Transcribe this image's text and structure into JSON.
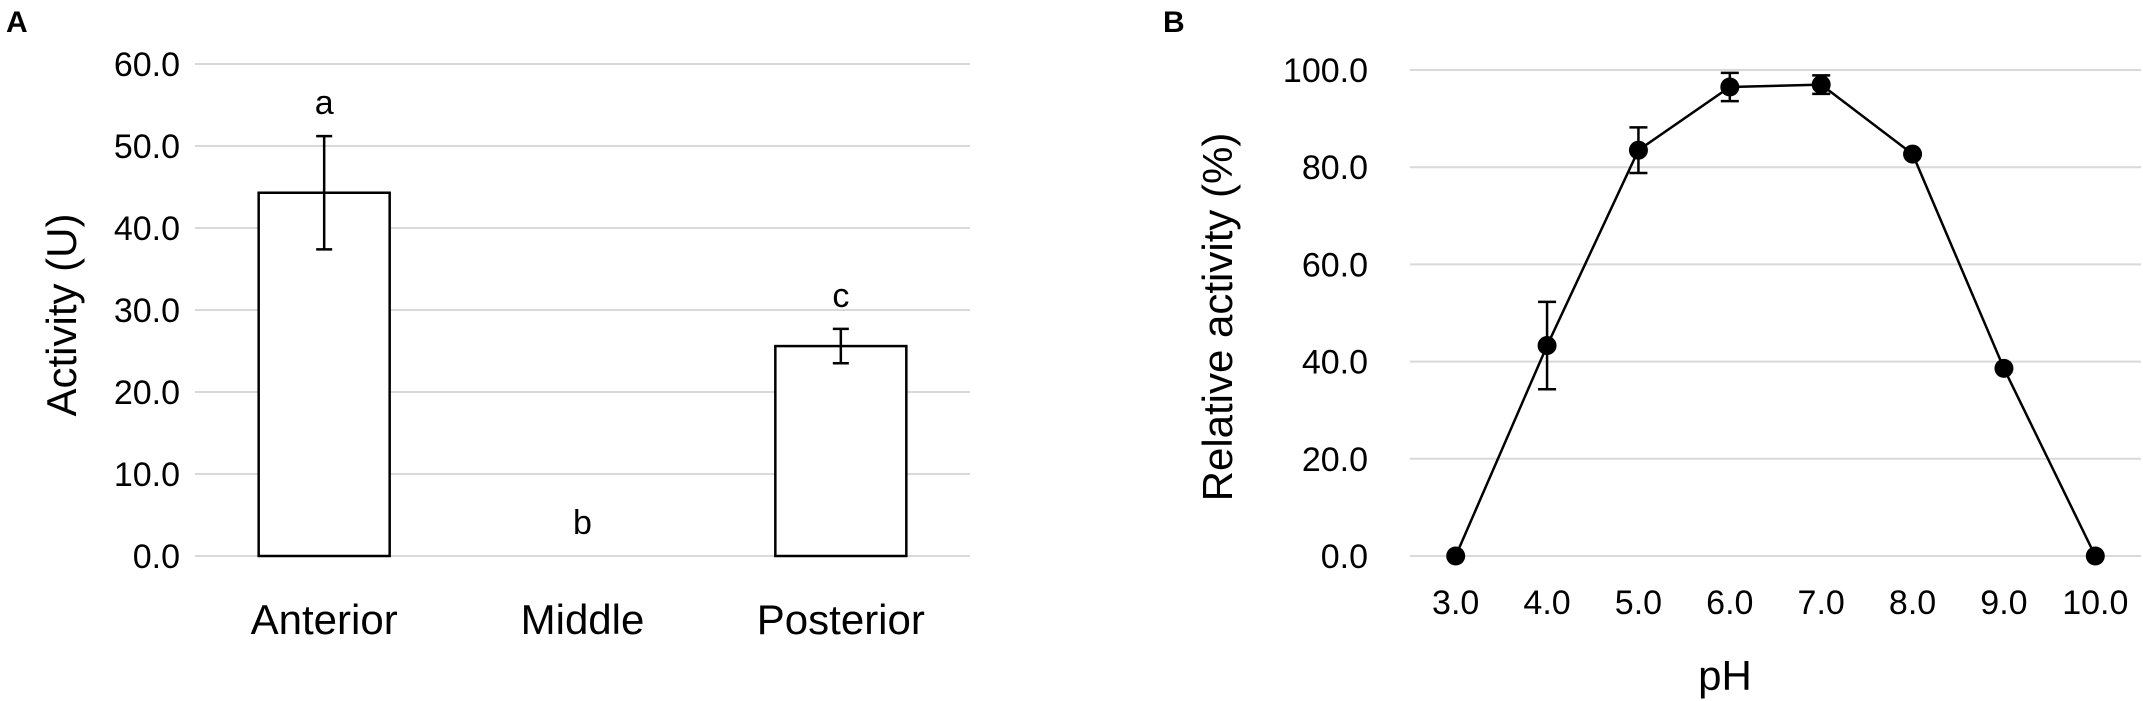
{
  "panels": [
    {
      "letter": "A"
    },
    {
      "letter": "B"
    }
  ],
  "colors": {
    "bar_fill": "#ffffff",
    "bar_stroke": "#000000",
    "line": "#000000",
    "grid": "#d9d9d9"
  },
  "chart_data": [
    {
      "type": "bar",
      "ylabel": "Activity (U)",
      "xlabel": "",
      "ylim": [
        0,
        60
      ],
      "yticks": [
        "0.0",
        "10.0",
        "20.0",
        "30.0",
        "40.0",
        "50.0",
        "60.0"
      ],
      "grid": true,
      "categories": [
        "Anterior",
        "Middle",
        "Posterior"
      ],
      "values": [
        44.3,
        0,
        25.6
      ],
      "errors": [
        6.9,
        0,
        2.1
      ],
      "annotations": [
        "a",
        "b",
        "c"
      ]
    },
    {
      "type": "line",
      "ylabel": "Relative activity (%)",
      "xlabel": "pH",
      "ylim": [
        0,
        100
      ],
      "yticks": [
        "0.0",
        "20.0",
        "40.0",
        "60.0",
        "80.0",
        "100.0"
      ],
      "grid": true,
      "x": [
        "3.0",
        "4.0",
        "5.0",
        "6.0",
        "7.0",
        "8.0",
        "9.0",
        "10.0"
      ],
      "values": [
        0.0,
        43.3,
        83.5,
        96.5,
        97.0,
        82.7,
        38.6,
        0.0
      ],
      "errors": [
        0.0,
        9.0,
        4.7,
        2.9,
        1.9,
        0.0,
        0.0,
        0.0
      ]
    }
  ]
}
